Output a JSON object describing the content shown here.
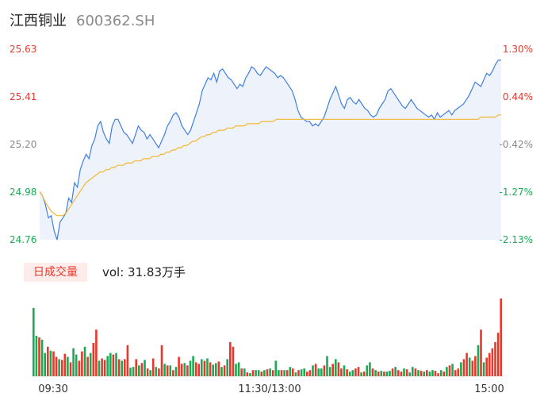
{
  "header": {
    "stock_name": "江西铜业",
    "stock_code": "600362.SH"
  },
  "volume_panel": {
    "tag_label": "日成交量",
    "summary": "vol: 31.83万手"
  },
  "colors": {
    "up": "#e8382b",
    "down": "#1aaa55",
    "price_line": "#3f7fe0",
    "avg_line": "#f2b632",
    "neutral": "#888888"
  },
  "chart_data": [
    {
      "type": "line",
      "x_labels": [
        "09:30",
        "11:30/13:00",
        "15:00"
      ],
      "ylim": [
        24.76,
        25.63
      ],
      "y_ticks_left": [
        "25.63",
        "25.41",
        "25.20",
        "24.98",
        "24.76"
      ],
      "y_ticks_right": [
        "1.30%",
        "0.44%",
        "-0.42%",
        "-1.27%",
        "-2.13%"
      ],
      "series": [
        {
          "values": [
            24.98,
            24.96,
            24.92,
            24.86,
            24.87,
            24.8,
            24.76,
            24.84,
            24.86,
            24.88,
            24.95,
            24.93,
            25.02,
            25.0,
            25.08,
            25.12,
            25.15,
            25.13,
            25.19,
            25.22,
            25.28,
            25.3,
            25.25,
            25.22,
            25.2,
            25.28,
            25.31,
            25.31,
            25.28,
            25.25,
            25.24,
            25.22,
            25.2,
            25.24,
            25.28,
            25.26,
            25.25,
            25.22,
            25.24,
            25.22,
            25.2,
            25.18,
            25.21,
            25.24,
            25.28,
            25.3,
            25.33,
            25.34,
            25.32,
            25.28,
            25.26,
            25.24,
            25.26,
            25.3,
            25.34,
            25.38,
            25.44,
            25.47,
            25.5,
            25.49,
            25.52,
            25.48,
            25.53,
            25.54,
            25.52,
            25.5,
            25.49,
            25.47,
            25.45,
            25.47,
            25.46,
            25.5,
            25.52,
            25.55,
            25.54,
            25.52,
            25.51,
            25.53,
            25.55,
            25.54,
            25.53,
            25.52,
            25.5,
            25.51,
            25.5,
            25.48,
            25.46,
            25.44,
            25.4,
            25.35,
            25.32,
            25.31,
            25.3,
            25.3,
            25.28,
            25.29,
            25.28,
            25.3,
            25.32,
            25.36,
            25.4,
            25.43,
            25.46,
            25.42,
            25.38,
            25.36,
            25.4,
            25.41,
            25.39,
            25.38,
            25.4,
            25.38,
            25.36,
            25.35,
            25.33,
            25.32,
            25.33,
            25.36,
            25.38,
            25.4,
            25.44,
            25.45,
            25.43,
            25.41,
            25.39,
            25.37,
            25.36,
            25.38,
            25.4,
            25.38,
            25.36,
            25.35,
            25.34,
            25.33,
            25.32,
            25.33,
            25.31,
            25.34,
            25.32,
            25.33,
            25.34,
            25.35,
            25.33,
            25.35,
            25.36,
            25.37,
            25.38,
            25.4,
            25.42,
            25.45,
            25.48,
            25.47,
            25.46,
            25.49,
            25.52,
            25.51,
            25.53,
            25.56,
            25.58,
            25.58
          ],
          "color_key": "price_line"
        },
        {
          "values": [
            24.98,
            24.96,
            24.93,
            24.91,
            24.89,
            24.88,
            24.87,
            24.87,
            24.87,
            24.88,
            24.9,
            24.92,
            24.94,
            24.96,
            24.98,
            25.0,
            25.02,
            25.03,
            25.04,
            25.05,
            25.06,
            25.07,
            25.07,
            25.08,
            25.08,
            25.09,
            25.09,
            25.1,
            25.1,
            25.1,
            25.11,
            25.11,
            25.11,
            25.12,
            25.12,
            25.12,
            25.13,
            25.13,
            25.13,
            25.14,
            25.14,
            25.14,
            25.15,
            25.15,
            25.16,
            25.16,
            25.17,
            25.17,
            25.18,
            25.18,
            25.19,
            25.19,
            25.2,
            25.21,
            25.21,
            25.22,
            25.23,
            25.23,
            25.24,
            25.24,
            25.25,
            25.25,
            25.26,
            25.26,
            25.26,
            25.27,
            25.27,
            25.27,
            25.28,
            25.28,
            25.28,
            25.28,
            25.29,
            25.29,
            25.29,
            25.29,
            25.29,
            25.3,
            25.3,
            25.3,
            25.3,
            25.3,
            25.31,
            25.31,
            25.31,
            25.31,
            25.31,
            25.31,
            25.31,
            25.31,
            25.31,
            25.31,
            25.31,
            25.31,
            25.31,
            25.31,
            25.31,
            25.31,
            25.31,
            25.31,
            25.31,
            25.31,
            25.31,
            25.31,
            25.31,
            25.31,
            25.31,
            25.31,
            25.31,
            25.31,
            25.31,
            25.31,
            25.31,
            25.31,
            25.31,
            25.31,
            25.31,
            25.31,
            25.31,
            25.31,
            25.31,
            25.31,
            25.31,
            25.31,
            25.31,
            25.31,
            25.31,
            25.31,
            25.31,
            25.31,
            25.31,
            25.31,
            25.31,
            25.31,
            25.31,
            25.31,
            25.31,
            25.31,
            25.31,
            25.31,
            25.31,
            25.31,
            25.31,
            25.31,
            25.31,
            25.31,
            25.31,
            25.31,
            25.31,
            25.31,
            25.31,
            25.31,
            25.31,
            25.32,
            25.32,
            25.32,
            25.32,
            25.32,
            25.32,
            25.33,
            25.33
          ],
          "color_key": "avg_line"
        }
      ]
    },
    {
      "type": "bar",
      "values": [
        88,
        52,
        50,
        47,
        30,
        38,
        33,
        32,
        25,
        22,
        21,
        29,
        25,
        18,
        36,
        28,
        20,
        32,
        38,
        25,
        30,
        43,
        60,
        20,
        23,
        21,
        26,
        30,
        28,
        30,
        22,
        20,
        22,
        40,
        11,
        12,
        22,
        14,
        17,
        21,
        10,
        8,
        23,
        12,
        10,
        40,
        16,
        14,
        14,
        8,
        12,
        25,
        16,
        17,
        14,
        20,
        26,
        18,
        16,
        22,
        20,
        23,
        18,
        15,
        17,
        19,
        12,
        14,
        22,
        44,
        38,
        16,
        18,
        10,
        10,
        5,
        4,
        8,
        8,
        8,
        6,
        8,
        9,
        10,
        8,
        20,
        8,
        8,
        8,
        8,
        12,
        10,
        5,
        8,
        9,
        10,
        6,
        8,
        14,
        16,
        10,
        10,
        14,
        26,
        12,
        16,
        22,
        18,
        10,
        14,
        9,
        6,
        8,
        10,
        12,
        5,
        6,
        14,
        18,
        10,
        8,
        6,
        7,
        6,
        6,
        7,
        10,
        12,
        8,
        6,
        10,
        9,
        5,
        12,
        10,
        8,
        7,
        6,
        8,
        6,
        8,
        7,
        4,
        8,
        6,
        12,
        14,
        16,
        8,
        10,
        18,
        22,
        30,
        24,
        20,
        26,
        40,
        60,
        18,
        24,
        30,
        36,
        44,
        56,
        100
      ],
      "up_flags": [
        0,
        0,
        1,
        0,
        0,
        1,
        0,
        1,
        1,
        0,
        1,
        1,
        0,
        1,
        0,
        0,
        1,
        1,
        0,
        1,
        0,
        1,
        1,
        0,
        1,
        1,
        0,
        0,
        1,
        0,
        1,
        0,
        1,
        1,
        0,
        0,
        1,
        0,
        1,
        0,
        1,
        0,
        1,
        0,
        1,
        1,
        0,
        1,
        0,
        1,
        0,
        1,
        1,
        0,
        1,
        0,
        0,
        1,
        1,
        0,
        1,
        0,
        1,
        0,
        0,
        1,
        0,
        1,
        0,
        1,
        1,
        0,
        0,
        1,
        0,
        1,
        0,
        1,
        0,
        0,
        1,
        0,
        1,
        0,
        1,
        0,
        0,
        1,
        0,
        1,
        0,
        1,
        0,
        1,
        0,
        0,
        1,
        1,
        0,
        1,
        0,
        0,
        1,
        0,
        0,
        1,
        0,
        1,
        1,
        0,
        1,
        0,
        0,
        1,
        1,
        0,
        1,
        0,
        0,
        1,
        0,
        1,
        0,
        1,
        0,
        0,
        1,
        0,
        1,
        1,
        0,
        1,
        0,
        0,
        1,
        0,
        1,
        0,
        1,
        0,
        0,
        1,
        1,
        0,
        1,
        0,
        1,
        0,
        1,
        1,
        0,
        1,
        1,
        0,
        1,
        1,
        0,
        1,
        0,
        1,
        1,
        1,
        1,
        1,
        1
      ]
    }
  ]
}
